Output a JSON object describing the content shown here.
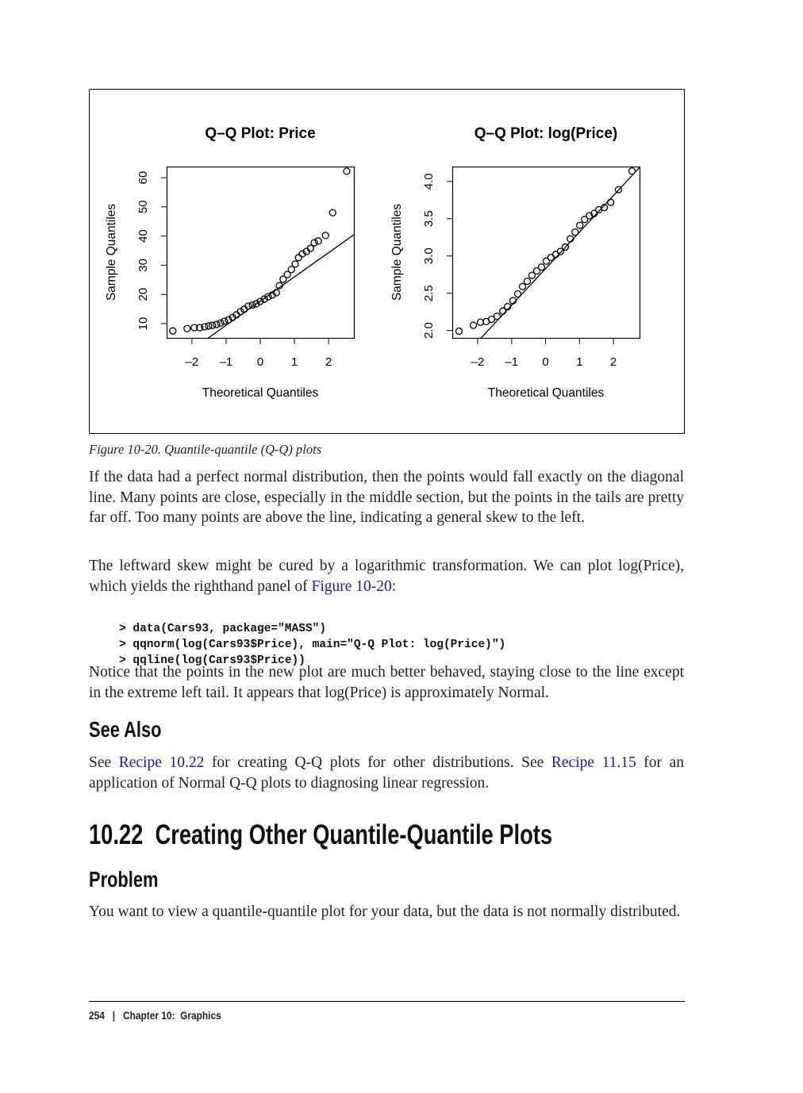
{
  "chart_data": [
    {
      "type": "scatter",
      "title": "Q–Q Plot: Price",
      "x_label": "Theoretical Quantiles",
      "y_label": "Sample Quantiles",
      "x": [
        -2.56,
        -2.14,
        -1.93,
        -1.77,
        -1.63,
        -1.51,
        -1.4,
        -1.28,
        -1.16,
        -1.05,
        -0.93,
        -0.81,
        -0.7,
        -0.58,
        -0.47,
        -0.35,
        -0.23,
        -0.12,
        0,
        0.12,
        0.23,
        0.35,
        0.47,
        0.56,
        0.67,
        0.79,
        0.91,
        1.02,
        1.12,
        1.23,
        1.35,
        1.47,
        1.58,
        1.7,
        1.91,
        2.12,
        2.53
      ],
      "values": [
        7.5,
        8.3,
        8.6,
        8.6,
        8.9,
        9.2,
        9.4,
        9.7,
        10.2,
        10.8,
        11.3,
        12.1,
        13,
        14.1,
        14.9,
        16,
        16.3,
        16.8,
        17.6,
        18.4,
        19.2,
        19.8,
        20.6,
        23,
        25.2,
        26.8,
        28.5,
        30.4,
        32.6,
        33.9,
        34.7,
        35.8,
        37.7,
        38.3,
        40.2,
        48,
        62.2
      ],
      "qqline": {
        "intercept": 17.7,
        "slope": 8.3
      },
      "xlim": [
        -2.74,
        2.74
      ],
      "ylim": [
        5.1,
        63.8
      ],
      "xticks": [
        {
          "value": -2,
          "label": "–2"
        },
        {
          "value": -1,
          "label": "–1"
        },
        0,
        1,
        2
      ],
      "yticks": [
        10,
        20,
        30,
        40,
        50,
        60
      ],
      "color": "#000000"
    },
    {
      "type": "scatter",
      "title": "Q–Q Plot: log(Price)",
      "x_label": "Theoretical Quantiles",
      "y_label": "Sample Quantiles",
      "x": [
        -2.55,
        -2.13,
        -1.92,
        -1.75,
        -1.59,
        -1.43,
        -1.26,
        -1.12,
        -0.96,
        -0.82,
        -0.68,
        -0.54,
        -0.4,
        -0.26,
        -0.12,
        0.02,
        0.16,
        0.3,
        0.44,
        0.58,
        0.73,
        0.87,
        1.01,
        1.15,
        1.29,
        1.43,
        1.57,
        1.73,
        1.92,
        2.15,
        2.55
      ],
      "values": [
        1.99,
        2.07,
        2.11,
        2.12,
        2.15,
        2.19,
        2.26,
        2.32,
        2.4,
        2.49,
        2.59,
        2.66,
        2.74,
        2.8,
        2.85,
        2.93,
        2.98,
        3.02,
        3.06,
        3.12,
        3.23,
        3.32,
        3.41,
        3.49,
        3.54,
        3.57,
        3.62,
        3.65,
        3.72,
        3.89,
        4.14
      ],
      "qqline": {
        "intercept": 2.83,
        "slope": 0.49
      },
      "xlim": [
        -2.75,
        2.77
      ],
      "ylim": [
        1.9,
        4.2
      ],
      "xticks": [
        {
          "value": -2,
          "label": "–2"
        },
        {
          "value": -1,
          "label": "–1"
        },
        0,
        1,
        2
      ],
      "yticks": [
        {
          "value": 2,
          "label": "2.0"
        },
        2.5,
        {
          "value": 3,
          "label": "3.0"
        },
        3.5,
        {
          "value": 4,
          "label": "4.0"
        }
      ],
      "color": "#000000"
    }
  ],
  "caption": "Figure 10-20. Quantile-quantile (Q-Q) plots",
  "p1": "If the data had a perfect normal distribution, then the points would fall exactly on the diagonal line. Many points are close, especially in the middle section, but the points in the tails are pretty far off. Too many points are above the line, indicating a general skew to the left.",
  "p2": [
    "The leftward skew might be cured by a logarithmic transformation. We can plot log(Price), which yields the righthand panel of ",
    "Figure 10-20",
    ":"
  ],
  "code": [
    "> data(Cars93, package=\"MASS\")",
    "> qqnorm(log(Cars93$Price), main=\"Q-Q Plot: log(Price)\")",
    "> qqline(log(Cars93$Price))"
  ],
  "p3": "Notice that the points in the new plot are much better behaved, staying close to the line except in the extreme left tail. It appears that log(Price) is approximately Normal.",
  "see_also_heading": "See Also",
  "p4": [
    "See ",
    "Recipe 10.22",
    " for creating Q-Q plots for other distributions. See ",
    "Recipe 11.15",
    " for an application of Normal Q-Q plots to diagnosing linear regression."
  ],
  "section_heading": "10.22  Creating Other Quantile-Quantile Plots",
  "problem_heading": "Problem",
  "p5": "You want to view a quantile-quantile plot for your data, but the data is not normally distributed.",
  "footer": {
    "page": "254",
    "separator": "|",
    "chapter": "Chapter 10:  Graphics"
  }
}
